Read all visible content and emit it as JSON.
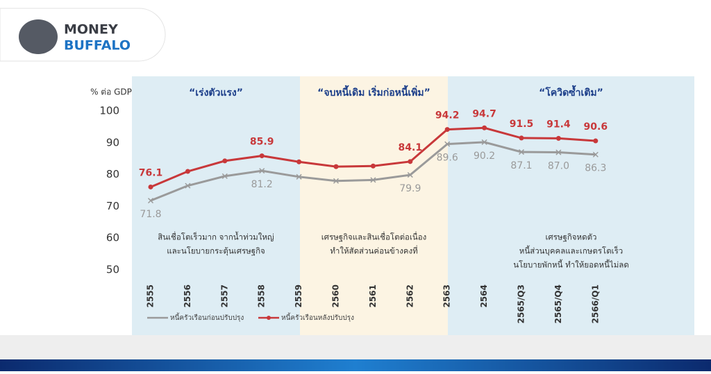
{
  "logo": {
    "line1": "MONEY",
    "line2": "BUFFALO"
  },
  "chart_data": {
    "type": "line",
    "y_label": "% ต่อ GDP",
    "categories": [
      "2555",
      "2556",
      "2557",
      "2558",
      "2559",
      "2560",
      "2561",
      "2562",
      "2563",
      "2564",
      "2565/Q3",
      "2565/Q4",
      "2566/Q1"
    ],
    "series": [
      {
        "name": "หนี้ครัวเรือนก่อนปรับปรุง",
        "color": "#9a9a9a",
        "marker": "x",
        "values": [
          71.8,
          76.5,
          79.5,
          81.2,
          79.3,
          78.0,
          78.3,
          79.9,
          89.6,
          90.2,
          87.1,
          87.0,
          86.3
        ],
        "value_labels": [
          "71.8",
          null,
          null,
          "81.2",
          null,
          null,
          null,
          "79.9",
          "89.6",
          "90.2",
          "87.1",
          "87.0",
          "86.3"
        ]
      },
      {
        "name": "หนี้ครัวเรือนหลังปรับปรุง",
        "color": "#c8383a",
        "marker": "circle",
        "values": [
          76.1,
          81.0,
          84.3,
          85.9,
          84.0,
          82.5,
          82.7,
          84.1,
          94.2,
          94.7,
          91.5,
          91.4,
          90.6
        ],
        "value_labels": [
          "76.1",
          null,
          null,
          "85.9",
          null,
          null,
          null,
          "84.1",
          "94.2",
          "94.7",
          "91.5",
          "91.4",
          "90.6"
        ]
      }
    ],
    "ylim": [
      50,
      100
    ],
    "yticks": [
      50,
      60,
      70,
      80,
      90,
      100
    ],
    "legend": "bottom",
    "sections": [
      {
        "title": "“เร่งตัวแรง”",
        "color": "#deedf4",
        "notes": [
          "สินเชื่อโตเร็วมาก จากน้ำท่วมใหญ่",
          "และนโยบายกระตุ้นเศรษฐกิจ"
        ]
      },
      {
        "title": "“จบหนี้เดิม เริ่มก่อหนี้เพิ่ม”",
        "color": "#fcf4e3",
        "notes": [
          "เศรษฐกิจและสินเชื่อโตต่อเนื่อง",
          "ทำให้สัดส่วนค่อนข้างคงที่"
        ]
      },
      {
        "title": "“โควิดซ้ำเติม”",
        "color": "#deedf4",
        "notes": [
          "เศรษฐกิจหดตัว",
          "หนี้ส่วนบุคคลและเกษตรโตเร็ว",
          "นโยบายพักหนี้ ทำให้ยอดหนี้ไม่ลด"
        ]
      }
    ]
  }
}
